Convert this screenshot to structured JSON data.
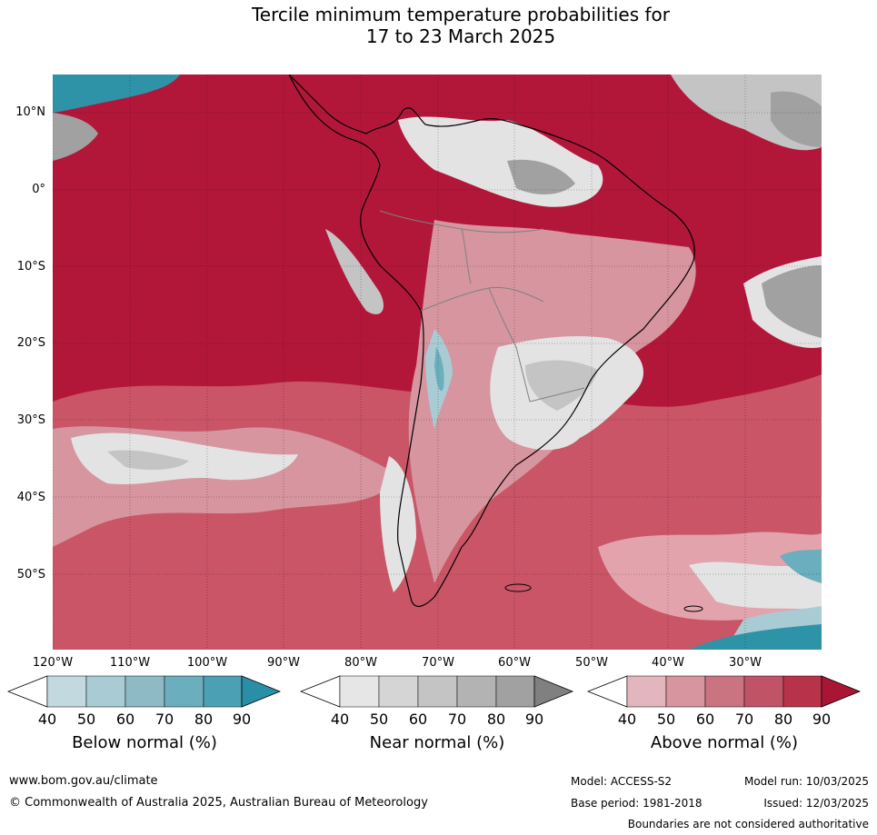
{
  "title": {
    "line1": "Tercile minimum temperature probabilities for",
    "line2": "17 to 23 March 2025"
  },
  "map": {
    "lat_labels": [
      "10°N",
      "0°",
      "10°S",
      "20°S",
      "30°S",
      "40°S",
      "50°S"
    ],
    "lon_labels": [
      "120°W",
      "110°W",
      "100°W",
      "90°W",
      "80°W",
      "70°W",
      "60°W",
      "50°W",
      "40°W",
      "30°W"
    ],
    "dominant_category": "Above normal",
    "colors": {
      "above_dark": "#b2173a",
      "above_mid": "#c95566",
      "above_light": "#e3a3ad",
      "near_light": "#e3e3e3",
      "near_mid": "#c4c4c4",
      "near_dark": "#a1a1a1",
      "below_light": "#a8cbd4",
      "below_dark": "#2f93a8",
      "coastline": "#000000",
      "border": "#808080"
    }
  },
  "legends": [
    {
      "title": "Below normal (%)",
      "ticks": [
        "40",
        "50",
        "60",
        "70",
        "80",
        "90"
      ],
      "colors": [
        "#ffffff",
        "#c1d9df",
        "#a8cbd4",
        "#8ebac6",
        "#6baebd",
        "#4ba1b3",
        "#2a8fa6"
      ]
    },
    {
      "title": "Near normal (%)",
      "ticks": [
        "40",
        "50",
        "60",
        "70",
        "80",
        "90"
      ],
      "colors": [
        "#ffffff",
        "#e6e6e6",
        "#d5d5d5",
        "#c4c4c4",
        "#b3b3b3",
        "#a1a1a1",
        "#808080"
      ]
    },
    {
      "title": "Above normal (%)",
      "ticks": [
        "40",
        "50",
        "60",
        "70",
        "80",
        "90"
      ],
      "colors": [
        "#ffffff",
        "#e3b5bc",
        "#d6959f",
        "#ca7381",
        "#c05366",
        "#b8334a",
        "#aa1535"
      ]
    }
  ],
  "footer": {
    "website": "www.bom.gov.au/climate",
    "copyright": "© Commonwealth of Australia 2025, Australian Bureau of Meteorology",
    "model": "Model: ACCESS-S2",
    "model_run": "Model run: 10/03/2025",
    "base_period": "Base period: 1981-2018",
    "issued": "Issued: 12/03/2025",
    "disclaimer": "Boundaries are not considered authoritative"
  }
}
